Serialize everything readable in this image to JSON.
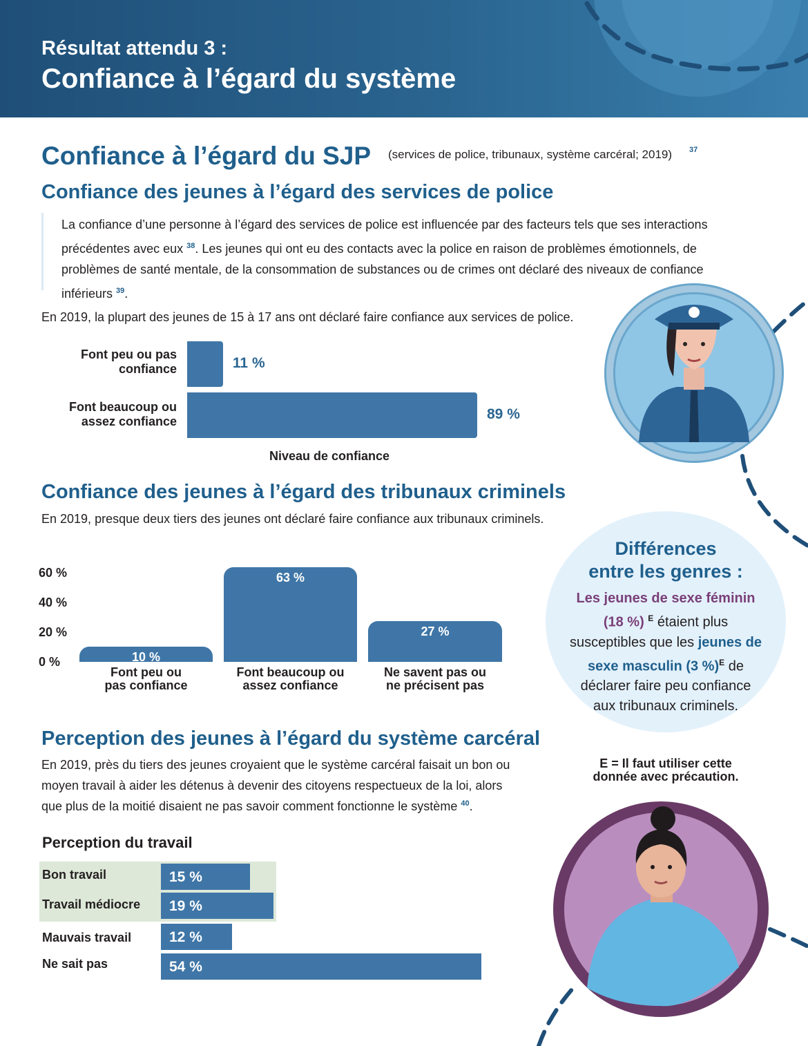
{
  "header": {
    "kicker": "Résultat attendu 3 :",
    "title": "Confiance à l’égard du système"
  },
  "section": {
    "title": "Confiance à l’égard du SJP",
    "note": "(services de police, tribunaux, système carcéral; 2019)",
    "note_ref": "37"
  },
  "police": {
    "heading": "Confiance des jeunes à l’égard des services de police",
    "quote": {
      "part1": "La confiance d’une personne à l’égard des services de police est influencée par des facteurs tels que ses interactions précédentes avec eux",
      "ref1": "38",
      "part2": ". Les jeunes qui ont eu des contacts avec la police en raison de problèmes émotionnels, de problèmes de santé mentale, de la consommation de substances ou de crimes ont déclaré des niveaux de confiance inférieurs",
      "ref2": "39",
      "part3": "."
    },
    "intro": "En 2019, la plupart des jeunes de 15 à 17 ans ont déclaré faire confiance aux services de police."
  },
  "courts": {
    "heading": "Confiance des jeunes à l’égard des tribunaux criminels",
    "intro": "En 2019, presque deux tiers des jeunes ont déclaré faire confiance aux tribunaux criminels."
  },
  "gender": {
    "title_line1": "Différences",
    "title_line2": "entre les genres :",
    "fem": "Les jeunes de sexe féminin (18 %)",
    "fem_sup": "E",
    "mid": " étaient plus susceptibles que les ",
    "masc": "jeunes de sexe masculin (3 %)",
    "masc_sup": "E",
    "end": " de déclarer faire peu confiance aux tribunaux criminels.",
    "e_note": "E = Il faut utiliser cette donnée avec précaution."
  },
  "prison": {
    "heading": "Perception des jeunes à l’égard du système carcéral",
    "intro_line1": "En 2019, près du tiers des jeunes croyaient que le système carcéral faisait un bon ou",
    "intro_line2": "moyen travail à aider les détenus à devenir des citoyens respectueux de la loi, alors",
    "intro_line3": "que plus de la moitié disaient ne pas savoir comment fonctionne le système",
    "intro_ref": "40",
    "intro_end": "."
  },
  "colors": {
    "bar": "#3f76a7",
    "heading": "#1f5f8c",
    "feminine": "#7a3f78",
    "highlight": "#dde8d8",
    "bubble": "#e3f1fb"
  },
  "chart_data": [
    {
      "type": "bar",
      "orientation": "horizontal",
      "categories": [
        "Font peu ou pas confiance",
        "Font beaucoup ou assez confiance"
      ],
      "values": [
        11,
        89
      ],
      "value_labels": [
        "11 %",
        "89 %"
      ],
      "xlabel": "Niveau de confiance",
      "ylabel": "",
      "xlim": [
        0,
        100
      ]
    },
    {
      "type": "bar",
      "orientation": "vertical",
      "categories": [
        "Font peu ou pas confiance",
        "Font beaucoup ou assez confiance",
        "Ne savent pas ou ne précisent pas"
      ],
      "values": [
        10,
        63,
        27
      ],
      "value_labels": [
        "10 %",
        "63 %",
        "27 %"
      ],
      "yticks": [
        "0 %",
        "20 %",
        "40 %",
        "60 %"
      ],
      "ylim": [
        0,
        63
      ],
      "xlabel": "",
      "ylabel": ""
    },
    {
      "type": "bar",
      "orientation": "horizontal",
      "title": "Perception du travail",
      "categories": [
        "Bon travail",
        "Travail médiocre",
        "Mauvais travail",
        "Ne sait pas"
      ],
      "values": [
        15,
        19,
        12,
        54
      ],
      "value_labels": [
        "15 %",
        "19 %",
        "12 %",
        "54 %"
      ],
      "highlighted": [
        "Bon travail",
        "Travail médiocre"
      ],
      "xlim": [
        0,
        54
      ]
    }
  ]
}
